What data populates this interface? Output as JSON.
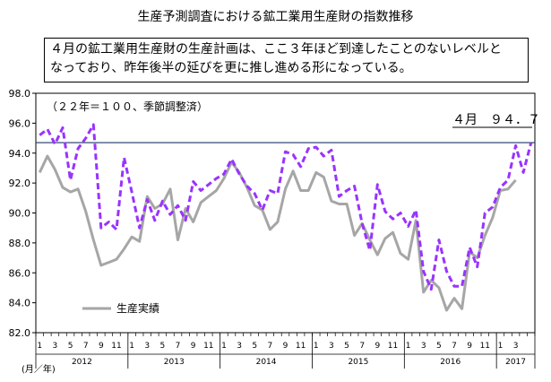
{
  "title": "生産予測調査における鉱工業用生産財の指数推移",
  "callout_lines": [
    "４月の鉱工業用生産財の生産計画は、ここ３年ほど到達したことのないレベルと",
    "なっており、昨年後半の延びを更に推し進める形になっている。"
  ],
  "chart_data": {
    "type": "line",
    "subtitle": "（２２年＝１００、季節調整済）",
    "xlabel": "(月／年)",
    "ylabel": "",
    "ylim": [
      82.0,
      98.0
    ],
    "yticks": [
      "82.0",
      "84.0",
      "86.0",
      "88.0",
      "90.0",
      "92.0",
      "94.0",
      "96.0",
      "98.0"
    ],
    "x_month_labels": [
      "1",
      "3",
      "5",
      "7",
      "9",
      "11",
      "1",
      "3",
      "5",
      "7",
      "9",
      "11",
      "1",
      "3",
      "5",
      "7",
      "9",
      "11",
      "1",
      "3",
      "5",
      "7",
      "9",
      "11",
      "1",
      "3",
      "5",
      "7",
      "9",
      "11",
      "1",
      "3"
    ],
    "years": [
      {
        "label": "2012",
        "start_index": 0
      },
      {
        "label": "2013",
        "start_index": 12
      },
      {
        "label": "2014",
        "start_index": 24
      },
      {
        "label": "2015",
        "start_index": 36
      },
      {
        "label": "2016",
        "start_index": 48
      },
      {
        "label": "2017",
        "start_index": 60
      }
    ],
    "series": [
      {
        "name": "生産実績",
        "color": "#a6a6a6",
        "style": "solid",
        "values": [
          92.7,
          93.8,
          92.9,
          91.7,
          91.4,
          91.6,
          90.1,
          88.2,
          86.5,
          86.7,
          86.9,
          87.6,
          88.4,
          88.1,
          91.1,
          90.3,
          90.6,
          91.6,
          88.2,
          90.3,
          89.4,
          90.7,
          91.1,
          91.5,
          92.3,
          93.4,
          92.7,
          91.7,
          90.5,
          90.2,
          88.9,
          89.4,
          91.6,
          92.8,
          91.5,
          91.5,
          92.7,
          92.4,
          90.8,
          90.6,
          90.6,
          88.5,
          89.3,
          88.2,
          87.2,
          88.3,
          88.7,
          87.3,
          86.9,
          89.5,
          84.7,
          85.5,
          85.0,
          83.5,
          84.3,
          83.6,
          87.4,
          87.0,
          88.5,
          89.7,
          91.5,
          91.6,
          92.2
        ]
      },
      {
        "name": "",
        "color": "#9933ff",
        "style": "dashed",
        "values": [
          95.2,
          95.6,
          94.6,
          95.7,
          92.2,
          94.3,
          95.0,
          95.9,
          89.0,
          89.4,
          88.9,
          93.7,
          91.4,
          89.0,
          90.9,
          89.5,
          90.8,
          89.9,
          90.5,
          89.5,
          92.1,
          91.5,
          91.9,
          92.3,
          92.6,
          93.6,
          92.6,
          91.8,
          91.3,
          90.2,
          91.5,
          91.3,
          94.1,
          93.9,
          93.1,
          94.3,
          94.4,
          93.8,
          94.2,
          91.1,
          91.5,
          91.8,
          89.3,
          87.5,
          91.9,
          90.1,
          89.6,
          90.0,
          89.1,
          90.2,
          86.1,
          84.9,
          88.2,
          86.1,
          85.1,
          85.1,
          87.7,
          86.4,
          90.0,
          90.4,
          91.7,
          92.2,
          94.5,
          92.7,
          94.7
        ]
      }
    ],
    "reference_line": {
      "value": 94.7,
      "label": "４月　９４．７"
    }
  }
}
